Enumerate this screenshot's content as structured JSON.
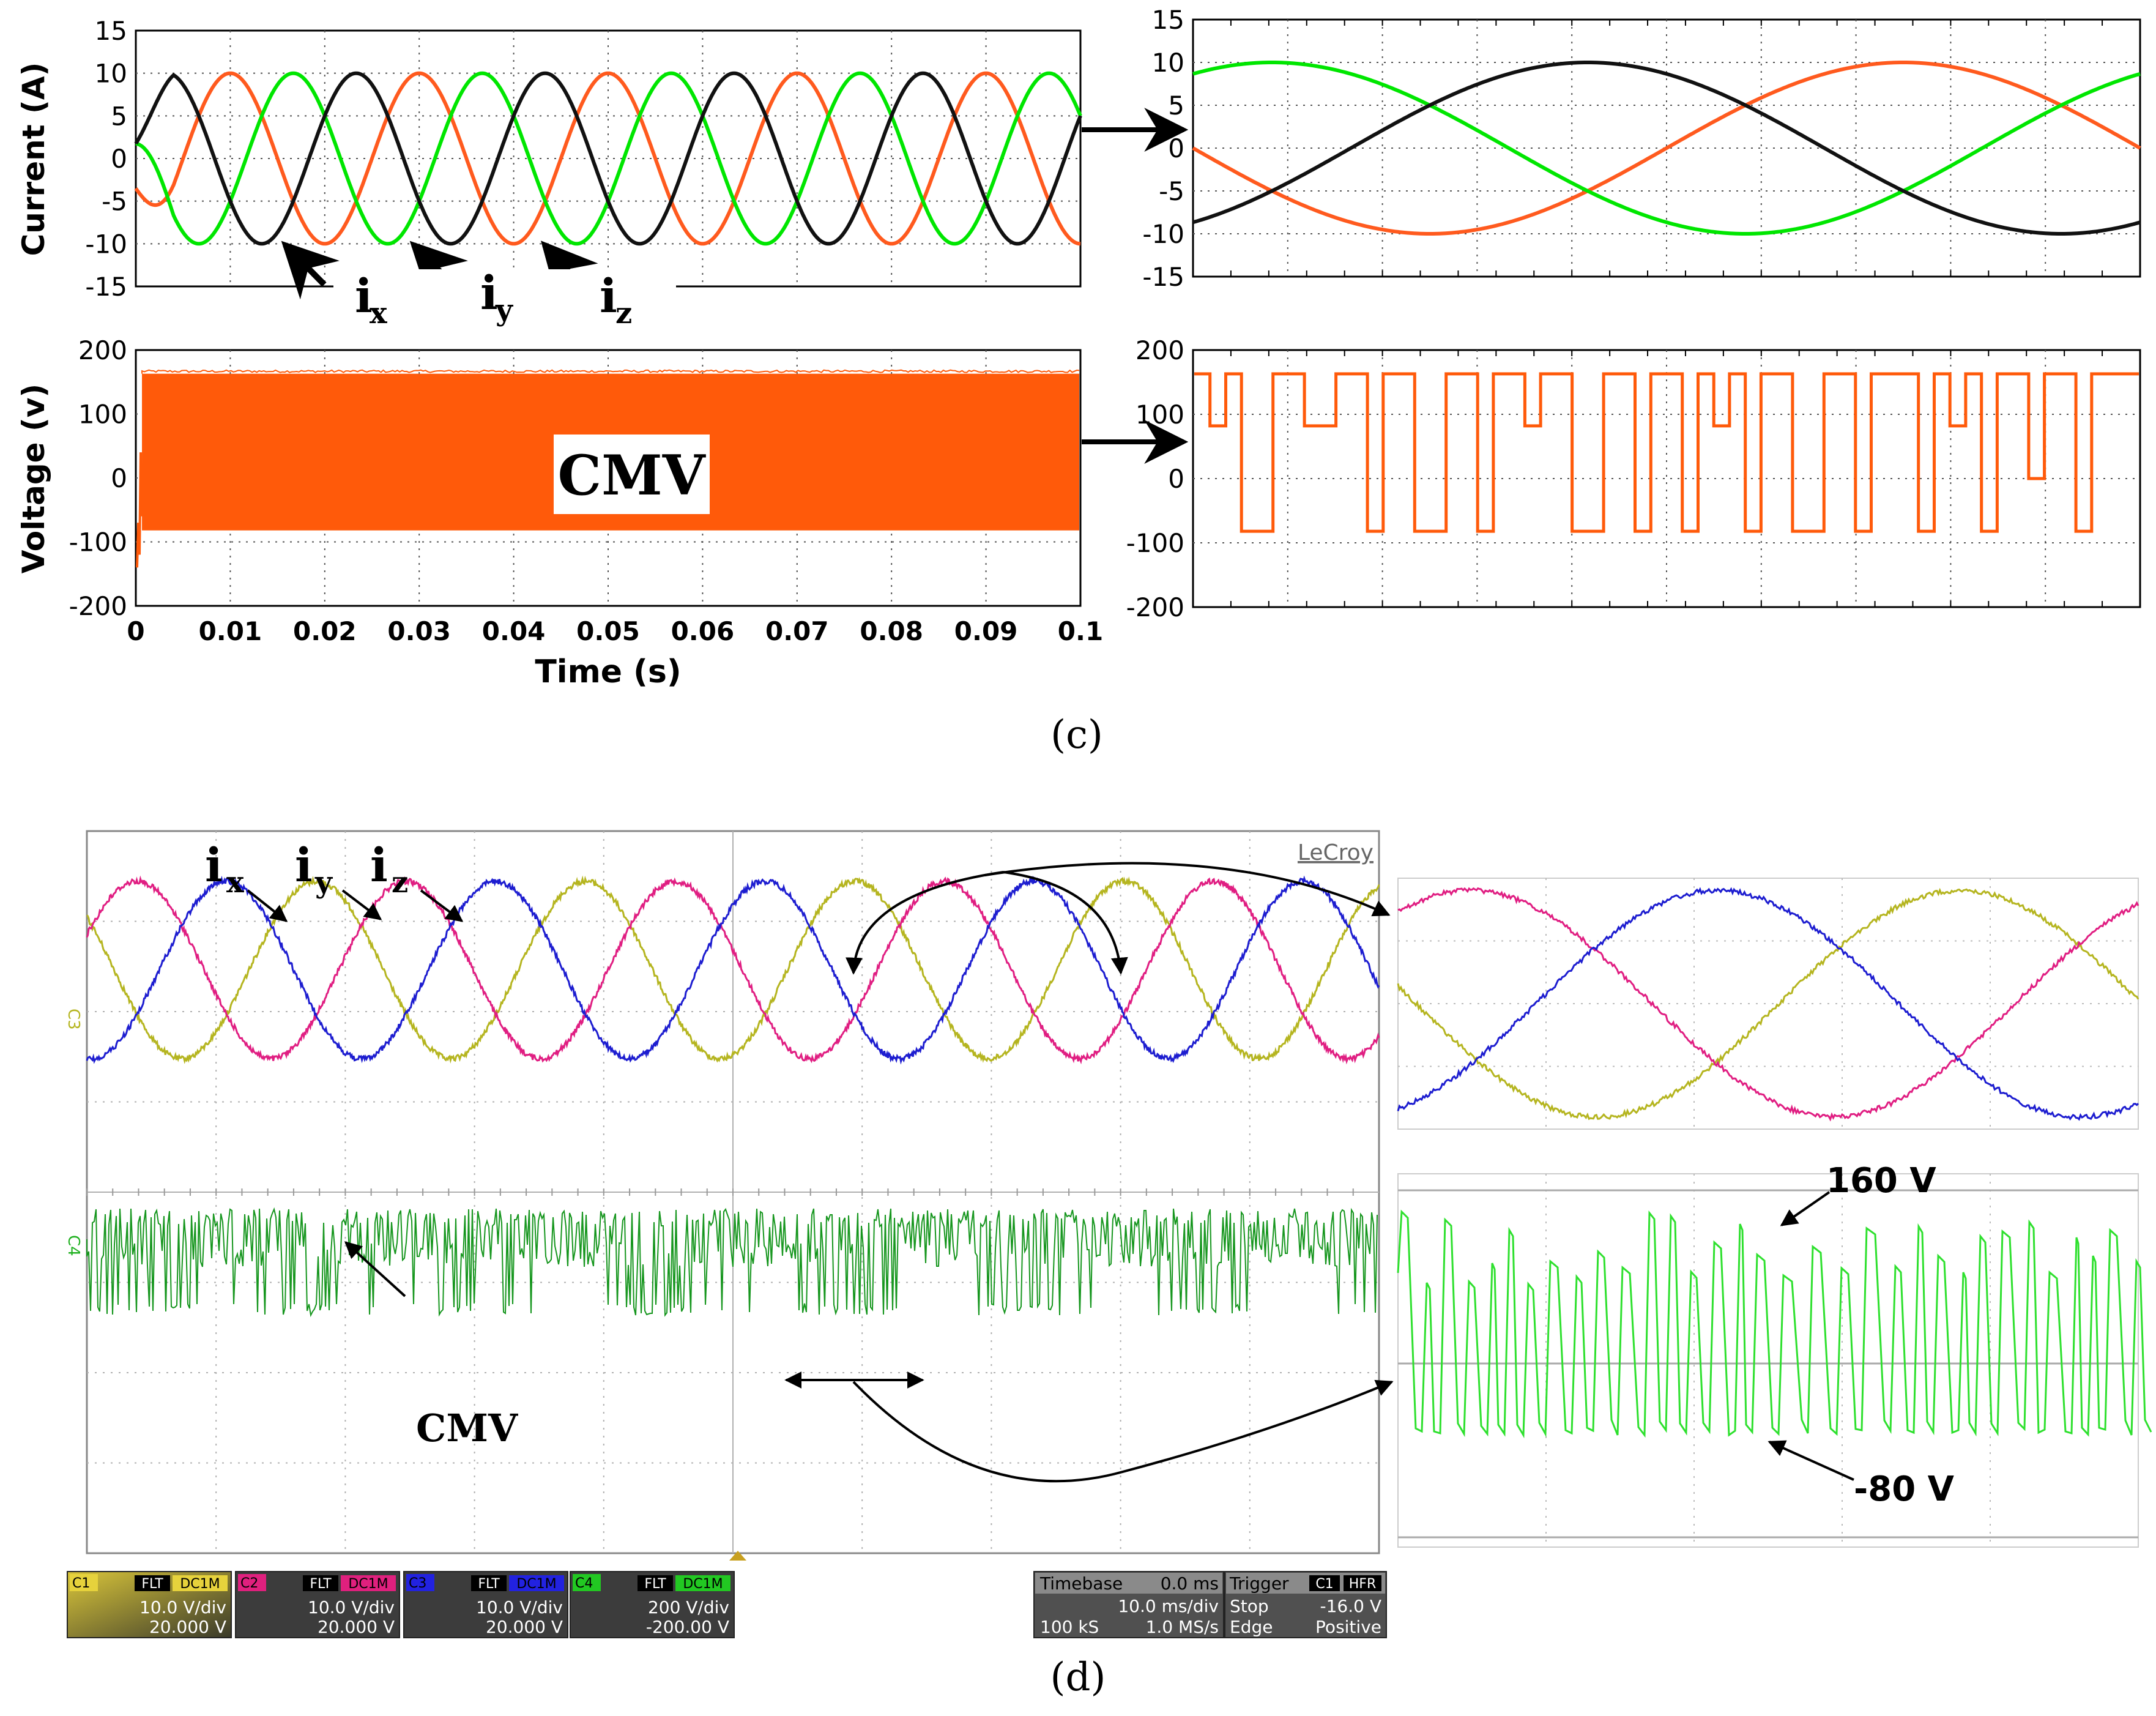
{
  "chart_data": [
    {
      "id": "c-current",
      "type": "line",
      "panel": "simulation",
      "title": "",
      "xlabel": "",
      "ylabel": "Current (A)",
      "xlim": [
        0,
        0.1
      ],
      "ylim": [
        -15,
        15
      ],
      "yticks": [
        15,
        10,
        5,
        0,
        -5,
        -10,
        -15
      ],
      "grid": true,
      "amplitude": 10,
      "frequency_hz": 50,
      "series": [
        {
          "name": "i_x",
          "color": "#ff5a1e",
          "phase_deg": -90
        },
        {
          "name": "i_y",
          "color": "#00e600",
          "phase_deg": 150
        },
        {
          "name": "i_z",
          "color": "#111111",
          "phase_deg": 30
        }
      ],
      "annotations": [
        "i",
        "x",
        "i",
        "y",
        "i",
        "z"
      ]
    },
    {
      "id": "c-current-zoom",
      "type": "line",
      "panel": "simulation zoom",
      "ylim": [
        -15,
        15
      ],
      "yticks": [
        15,
        10,
        5,
        0,
        -5,
        -10,
        -15
      ],
      "grid": true,
      "amplitude": 10,
      "cycles_shown": 1.0,
      "series": [
        {
          "name": "i_x",
          "color": "#ff5a1e",
          "phase_deg": 180
        },
        {
          "name": "i_y",
          "color": "#00e600",
          "phase_deg": 60
        },
        {
          "name": "i_z",
          "color": "#111111",
          "phase_deg": -60
        }
      ]
    },
    {
      "id": "c-voltage",
      "type": "area",
      "panel": "simulation",
      "xlabel": "Time (s)",
      "ylabel": "Voltage (v)",
      "xlim": [
        0,
        0.1
      ],
      "ylim": [
        -200,
        200
      ],
      "xticks": [
        "0",
        "0.01",
        "0.02",
        "0.03",
        "0.04",
        "0.05",
        "0.06",
        "0.07",
        "0.08",
        "0.09",
        "0.1"
      ],
      "yticks": [
        200,
        100,
        0,
        -100,
        -200
      ],
      "grid": true,
      "band": {
        "upper": 163,
        "lower": -82
      },
      "series": [
        {
          "name": "CMV",
          "color": "#ff5a0a"
        }
      ],
      "annotation": "CMV"
    },
    {
      "id": "c-voltage-zoom",
      "type": "line",
      "panel": "simulation zoom",
      "ylim": [
        -200,
        200
      ],
      "yticks": [
        200,
        100,
        0,
        -100,
        -200
      ],
      "grid": true,
      "levels": [
        163,
        82,
        0,
        -82
      ],
      "series": [
        {
          "name": "CMV",
          "color": "#ff5a0a"
        }
      ]
    },
    {
      "id": "d-scope",
      "type": "line",
      "panel": "experimental oscilloscope",
      "brand": "LeCroy",
      "series": [
        {
          "name": "i_x",
          "color": "#b5b520"
        },
        {
          "name": "i_y",
          "color": "#e01e82"
        },
        {
          "name": "i_z",
          "color": "#1d1dd0"
        },
        {
          "name": "CMV",
          "color": "#16961e"
        }
      ],
      "annotations": [
        "i",
        "x",
        "i",
        "y",
        "i",
        "z",
        "CMV"
      ],
      "channel_markers": [
        "C3",
        "C4"
      ]
    },
    {
      "id": "d-zoom",
      "type": "line",
      "panel": "experimental zoom",
      "series": [
        {
          "name": "i_x",
          "color": "#b5b520"
        },
        {
          "name": "i_y",
          "color": "#e01e82"
        },
        {
          "name": "i_z",
          "color": "#1d1dd0"
        },
        {
          "name": "CMV",
          "color": "#2ee02e"
        }
      ],
      "annotations": [
        "160 V",
        "-80 V"
      ]
    }
  ],
  "captions": {
    "c": "(c)",
    "d": "(d)"
  },
  "scope_status": {
    "channels": [
      {
        "id": "C1",
        "flag1": "FLT",
        "flag2": "DC1M",
        "scale": "10.0 V/div",
        "offset": "20.000 V",
        "color": "#e6d23c"
      },
      {
        "id": "C2",
        "flag1": "FLT",
        "flag2": "DC1M",
        "scale": "10.0 V/div",
        "offset": "20.000 V",
        "color": "#e0207e"
      },
      {
        "id": "C3",
        "flag1": "FLT",
        "flag2": "DC1M",
        "scale": "10.0 V/div",
        "offset": "20.000 V",
        "color": "#2222e0"
      },
      {
        "id": "C4",
        "flag1": "FLT",
        "flag2": "DC1M",
        "scale": "200 V/div",
        "offset": "-200.00 V",
        "color": "#22c822"
      }
    ],
    "timebase": {
      "label": "Timebase",
      "value": "0.0 ms",
      "div": "10.0 ms/div",
      "samples": "100 kS",
      "rate": "1.0 MS/s"
    },
    "trigger": {
      "label": "Trigger",
      "src": "C1",
      "mode": "HFR",
      "state": "Stop",
      "level": "-16.0 V",
      "type": "Edge",
      "slope": "Positive"
    }
  },
  "colors": {
    "sim_orange": "#ff5a1e",
    "sim_green": "#00e600",
    "sim_black": "#111111",
    "scope_bg": "#ffffff",
    "grid": "#9a9a9a"
  }
}
